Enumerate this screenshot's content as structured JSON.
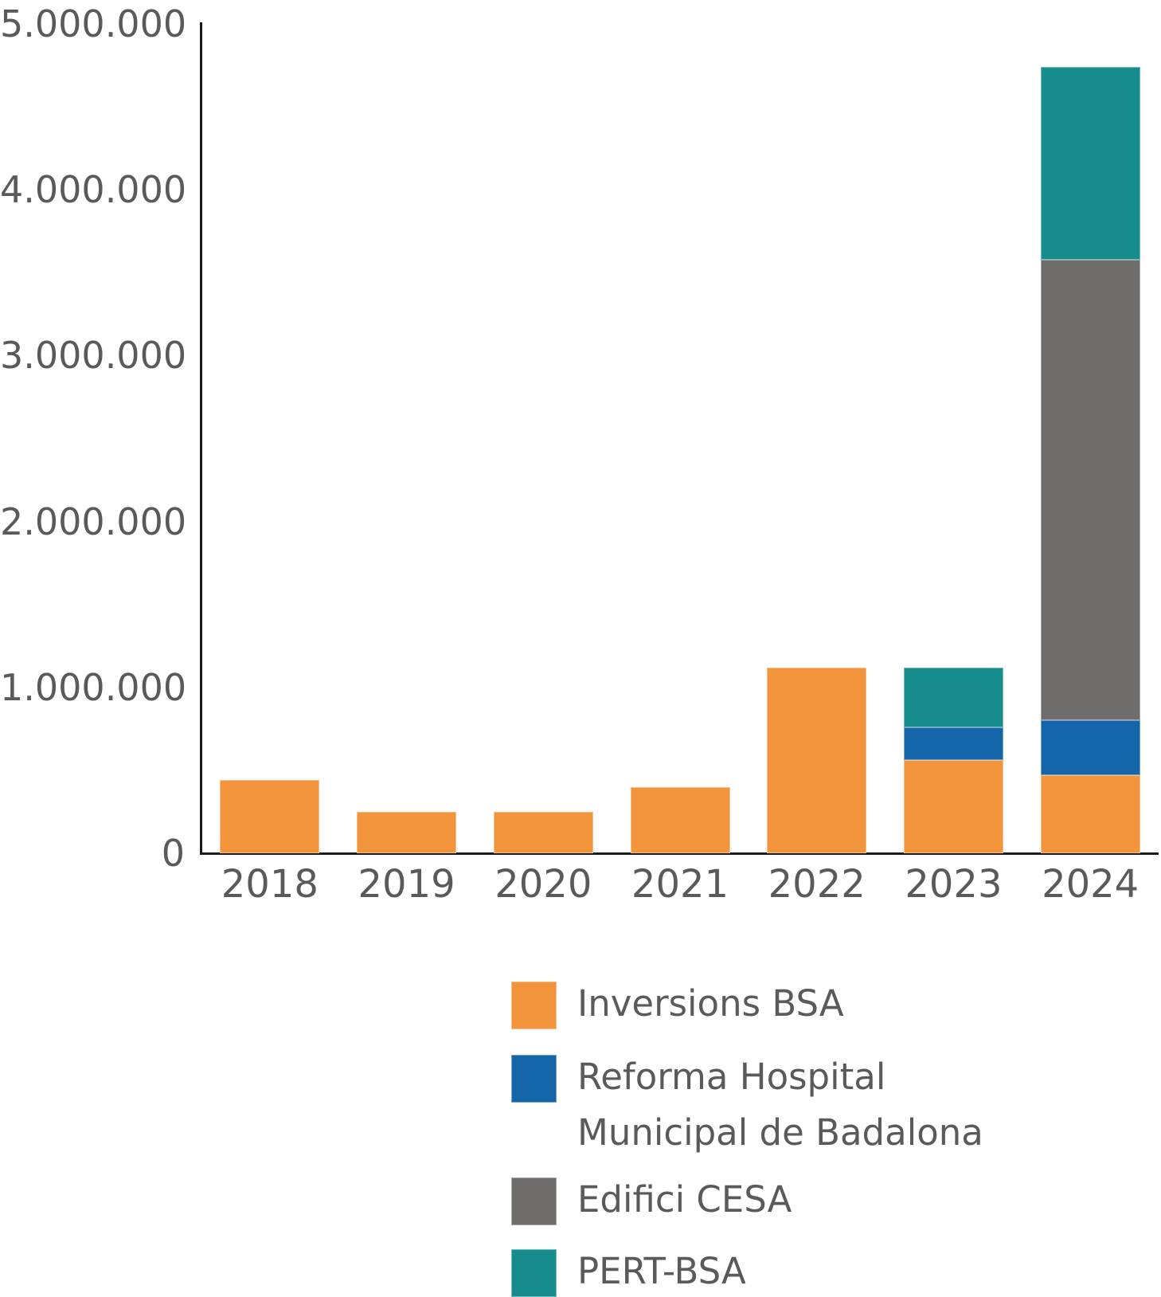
{
  "chart_data": {
    "type": "bar",
    "stacked": true,
    "title": "",
    "xlabel": "",
    "ylabel": "",
    "categories": [
      "2018",
      "2019",
      "2020",
      "2021",
      "2022",
      "2023",
      "2024"
    ],
    "series": [
      {
        "name": "Inversions BSA",
        "color": "#F2943C",
        "values": [
          440000,
          250000,
          250000,
          400000,
          1120000,
          560000,
          470000
        ]
      },
      {
        "name": "Reforma Hospital Municipal de Badalona",
        "color": "#1566A8",
        "values": [
          0,
          0,
          0,
          0,
          0,
          200000,
          330000
        ]
      },
      {
        "name": "Edifici CESA",
        "color": "#6F6C6C",
        "values": [
          0,
          0,
          0,
          0,
          0,
          0,
          2780000
        ]
      },
      {
        "name": "PERT-BSA",
        "color": "#178C8D",
        "values": [
          0,
          0,
          0,
          0,
          0,
          360000,
          1160000
        ]
      }
    ],
    "ylim": [
      0,
      5000000
    ],
    "ytick_values": [
      5000000,
      4000000,
      3000000,
      2000000,
      1000000,
      0
    ],
    "ytick_labels": [
      "5.000.000",
      "4.000.000",
      "3.000.000",
      "2.000.000",
      "1.000.000",
      "0"
    ],
    "grid": false,
    "legend_position": "bottom",
    "legend": [
      {
        "lines": [
          "Inversions BSA"
        ],
        "color": "#F2943C"
      },
      {
        "lines": [
          "Reforma Hospital",
          "Municipal de Badalona"
        ],
        "color": "#1566A8"
      },
      {
        "lines": [
          "Edifici CESA"
        ],
        "color": "#6F6C6C"
      },
      {
        "lines": [
          "PERT-BSA"
        ],
        "color": "#178C8D"
      }
    ],
    "axis_color": "#1A1A1A",
    "text_color": "#5A5A5A"
  }
}
